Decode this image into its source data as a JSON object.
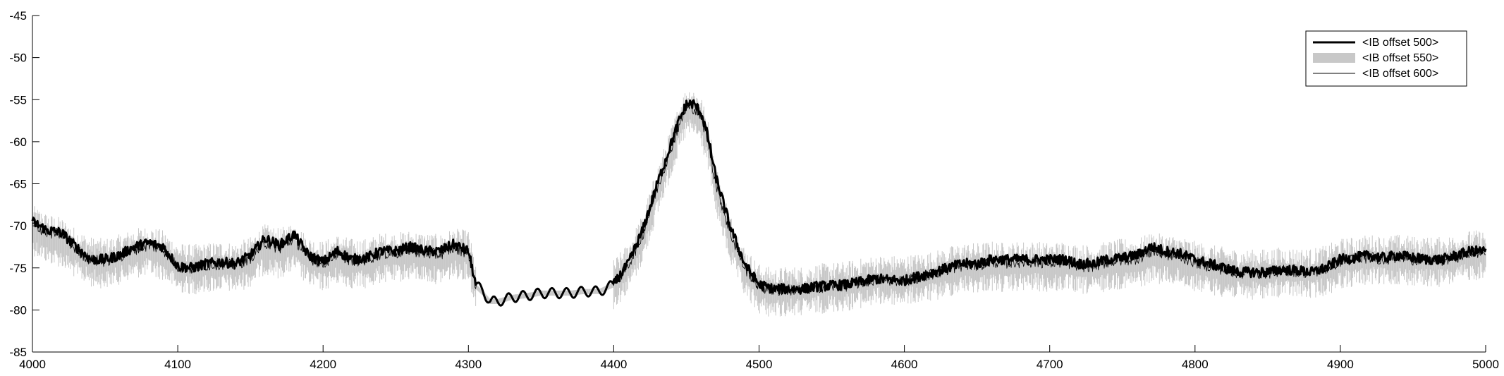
{
  "chart_data": {
    "type": "line",
    "title": "",
    "xlabel": "",
    "ylabel": "",
    "xlim": [
      4000,
      5000
    ],
    "ylim": [
      -85,
      -45
    ],
    "xticks": [
      4000,
      4100,
      4200,
      4300,
      4400,
      4500,
      4600,
      4700,
      4800,
      4900,
      5000
    ],
    "yticks": [
      -45,
      -50,
      -55,
      -60,
      -65,
      -70,
      -75,
      -80,
      -85
    ],
    "grid": false,
    "legend_position": "top-right",
    "series": [
      {
        "name": "<IB offset 500>",
        "style": "thick-line",
        "color": "#000000",
        "x": [
          4000,
          4010,
          4020,
          4030,
          4040,
          4050,
          4060,
          4070,
          4080,
          4090,
          4100,
          4110,
          4120,
          4130,
          4140,
          4150,
          4160,
          4170,
          4180,
          4190,
          4200,
          4210,
          4220,
          4230,
          4240,
          4250,
          4260,
          4270,
          4280,
          4290,
          4300,
          4305,
          4310,
          4315,
          4320,
          4330,
          4340,
          4350,
          4360,
          4370,
          4380,
          4390,
          4400,
          4410,
          4420,
          4430,
          4440,
          4445,
          4450,
          4455,
          4460,
          4465,
          4470,
          4480,
          4490,
          4500,
          4510,
          4520,
          4530,
          4540,
          4560,
          4580,
          4600,
          4620,
          4630,
          4640,
          4650,
          4660,
          4670,
          4680,
          4690,
          4700,
          4710,
          4720,
          4730,
          4740,
          4750,
          4760,
          4770,
          4780,
          4790,
          4800,
          4810,
          4820,
          4830,
          4840,
          4850,
          4860,
          4870,
          4880,
          4890,
          4900,
          4910,
          4920,
          4930,
          4940,
          4950,
          4960,
          4970,
          4980,
          4990,
          5000
        ],
        "y": [
          -69.5,
          -70.5,
          -70.8,
          -72.5,
          -74,
          -74,
          -73.5,
          -72.5,
          -72,
          -72.5,
          -74.8,
          -75,
          -74.5,
          -74.3,
          -74.5,
          -73.5,
          -71.5,
          -72.3,
          -71,
          -73.5,
          -74.3,
          -73,
          -74,
          -73.8,
          -73,
          -73,
          -72.5,
          -73,
          -73,
          -72.2,
          -73,
          -77,
          -77.8,
          -79,
          -79,
          -78.5,
          -78.3,
          -78,
          -78,
          -78,
          -77.8,
          -77.8,
          -77,
          -74.5,
          -70.5,
          -65,
          -60,
          -57.5,
          -55.5,
          -55.5,
          -56.5,
          -59.5,
          -64,
          -70,
          -74.5,
          -77,
          -77.5,
          -77.5,
          -77.5,
          -77.2,
          -77,
          -76.3,
          -76.5,
          -75.5,
          -75,
          -74.5,
          -74.5,
          -74,
          -74,
          -74,
          -74,
          -74,
          -74,
          -74.5,
          -74.5,
          -74,
          -73.8,
          -73.5,
          -72.5,
          -73,
          -73.3,
          -74,
          -74.5,
          -75,
          -75.5,
          -75.5,
          -75.5,
          -75.2,
          -75.3,
          -75.5,
          -75,
          -74,
          -73.8,
          -73.5,
          -73.8,
          -73.5,
          -73.8,
          -74,
          -74,
          -73.5,
          -73,
          -73
        ]
      },
      {
        "name": "<IB offset 550>",
        "style": "band",
        "color": "#c8c8c8",
        "x": [
          4000,
          4010,
          4020,
          4030,
          4040,
          4050,
          4060,
          4070,
          4080,
          4090,
          4100,
          4110,
          4120,
          4130,
          4140,
          4150,
          4160,
          4170,
          4180,
          4190,
          4200,
          4210,
          4220,
          4230,
          4240,
          4250,
          4260,
          4270,
          4280,
          4290,
          4300,
          4305,
          4310,
          4315,
          4320,
          4330,
          4340,
          4350,
          4360,
          4370,
          4380,
          4390,
          4400,
          4410,
          4420,
          4430,
          4440,
          4445,
          4450,
          4455,
          4460,
          4465,
          4470,
          4480,
          4490,
          4500,
          4510,
          4520,
          4530,
          4540,
          4560,
          4580,
          4600,
          4620,
          4630,
          4640,
          4650,
          4660,
          4670,
          4680,
          4690,
          4700,
          4710,
          4720,
          4730,
          4740,
          4750,
          4760,
          4770,
          4780,
          4790,
          4800,
          4810,
          4820,
          4830,
          4840,
          4850,
          4860,
          4870,
          4880,
          4890,
          4900,
          4910,
          4920,
          4930,
          4940,
          4950,
          4960,
          4970,
          4980,
          4990,
          5000
        ],
        "y": [
          -70.5,
          -71.5,
          -72,
          -73.3,
          -74.3,
          -74.5,
          -74,
          -73.3,
          -73,
          -73.5,
          -75,
          -75.2,
          -75,
          -74.8,
          -75,
          -74.3,
          -72.8,
          -73.3,
          -72.5,
          -74.3,
          -74.8,
          -74,
          -74.5,
          -74.5,
          -73.8,
          -73.8,
          -73.5,
          -73.8,
          -74,
          -73.3,
          -73.5,
          -77.2,
          -78,
          -79,
          -79,
          -78.5,
          -78.3,
          -78,
          -78,
          -78,
          -77.8,
          -77.8,
          -77,
          -75,
          -71.5,
          -66,
          -61,
          -58.5,
          -56.5,
          -56.5,
          -57.5,
          -60.5,
          -65.5,
          -71.5,
          -75.5,
          -77.5,
          -78,
          -77.8,
          -77.8,
          -77.5,
          -77.2,
          -76.5,
          -76.5,
          -76,
          -75.5,
          -75,
          -75,
          -74.8,
          -75,
          -74.8,
          -74.8,
          -75,
          -74.8,
          -75.2,
          -75.2,
          -74.8,
          -74.5,
          -74.5,
          -73.8,
          -74,
          -74.2,
          -74.8,
          -75.2,
          -75.5,
          -75.8,
          -75.8,
          -75.7,
          -75.5,
          -75.6,
          -75.7,
          -75.3,
          -74.5,
          -74.3,
          -74,
          -74.2,
          -74,
          -74.2,
          -74.3,
          -74.3,
          -74,
          -73.5,
          -73.5
        ]
      },
      {
        "name": "<IB offset 600>",
        "style": "thin-line",
        "color": "#000000",
        "x": [
          4000,
          4010,
          4020,
          4030,
          4040,
          4050,
          4060,
          4070,
          4080,
          4090,
          4100,
          4110,
          4120,
          4130,
          4140,
          4150,
          4160,
          4170,
          4180,
          4190,
          4200,
          4210,
          4220,
          4230,
          4240,
          4250,
          4260,
          4270,
          4280,
          4290,
          4300,
          4305,
          4310,
          4315,
          4320,
          4330,
          4340,
          4350,
          4360,
          4370,
          4380,
          4390,
          4400,
          4410,
          4420,
          4430,
          4440,
          4445,
          4450,
          4455,
          4460,
          4465,
          4470,
          4480,
          4490,
          4500,
          4510,
          4520,
          4530,
          4540,
          4560,
          4580,
          4600,
          4620,
          4630,
          4640,
          4650,
          4660,
          4670,
          4680,
          4690,
          4700,
          4710,
          4720,
          4730,
          4740,
          4750,
          4760,
          4770,
          4780,
          4790,
          4800,
          4810,
          4820,
          4830,
          4840,
          4850,
          4860,
          4870,
          4880,
          4890,
          4900,
          4910,
          4920,
          4930,
          4940,
          4950,
          4960,
          4970,
          4980,
          4990,
          5000
        ],
        "y": [
          -69.8,
          -70.8,
          -71,
          -72.8,
          -74.1,
          -74.2,
          -73.7,
          -72.8,
          -72.3,
          -72.8,
          -74.9,
          -75.1,
          -74.7,
          -74.5,
          -74.7,
          -73.8,
          -72,
          -72.7,
          -71.5,
          -73.8,
          -74.5,
          -73.3,
          -74.2,
          -74,
          -73.3,
          -73.3,
          -72.8,
          -73.3,
          -73.4,
          -72.6,
          -73.2,
          -77.1,
          -77.9,
          -79,
          -79,
          -78.5,
          -78.3,
          -78,
          -78,
          -78,
          -77.8,
          -77.8,
          -77,
          -74.7,
          -71,
          -65.5,
          -60.5,
          -58,
          -56,
          -56,
          -57,
          -60,
          -64.8,
          -70.8,
          -75,
          -77.2,
          -77.7,
          -77.6,
          -77.6,
          -77.3,
          -77.1,
          -76.4,
          -76.5,
          -75.7,
          -75.2,
          -74.7,
          -74.7,
          -74.3,
          -74.4,
          -74.3,
          -74.3,
          -74.4,
          -74.3,
          -74.8,
          -74.8,
          -74.3,
          -74.1,
          -73.9,
          -73.1,
          -73.4,
          -73.7,
          -74.3,
          -74.8,
          -75.2,
          -75.6,
          -75.6,
          -75.6,
          -75.3,
          -75.4,
          -75.6,
          -75.1,
          -74.2,
          -74,
          -73.7,
          -74,
          -73.7,
          -74,
          -74.1,
          -74.1,
          -73.7,
          -73.2,
          -73.2
        ]
      }
    ]
  }
}
